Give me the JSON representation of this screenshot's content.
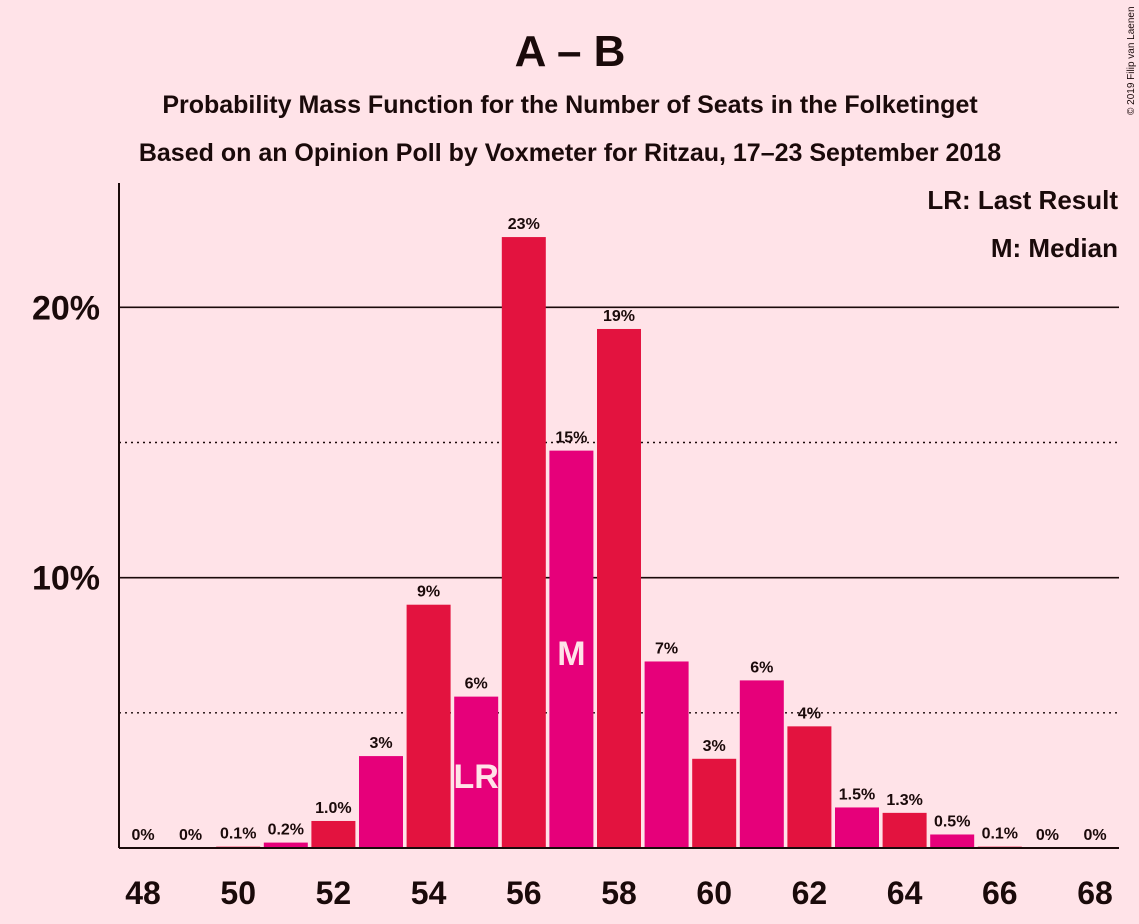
{
  "header": {
    "title": "A – B",
    "subtitle1": "Probability Mass Function for the Number of Seats in the Folketinget",
    "subtitle2": "Based on an Opinion Poll by Voxmeter for Ritzau, 17–23 September 2018",
    "copyright": "© 2019 Filip van Laenen"
  },
  "legend": {
    "lr": "LR: Last Result",
    "m": "M: Median"
  },
  "colors": {
    "background": "#ffe3e8",
    "bar_even": "#e3133f",
    "bar_odd": "#e6007a",
    "text": "#1a0a0a"
  },
  "chart_data": {
    "type": "bar",
    "xlabel": "",
    "ylabel": "",
    "ylim": [
      0,
      24.6
    ],
    "y_ticks": [
      {
        "value": 10,
        "label": "10%"
      },
      {
        "value": 20,
        "label": "20%"
      }
    ],
    "y_dotted": [
      5,
      15
    ],
    "x_ticks": [
      48,
      50,
      52,
      54,
      56,
      58,
      60,
      62,
      64,
      66,
      68
    ],
    "bars": [
      {
        "seats": 48,
        "value": 0.0,
        "label": "0%"
      },
      {
        "seats": 49,
        "value": 0.0,
        "label": "0%"
      },
      {
        "seats": 50,
        "value": 0.05,
        "label": "0.1%"
      },
      {
        "seats": 51,
        "value": 0.2,
        "label": "0.2%"
      },
      {
        "seats": 52,
        "value": 1.0,
        "label": "1.0%"
      },
      {
        "seats": 53,
        "value": 3.4,
        "label": "3%"
      },
      {
        "seats": 54,
        "value": 9.0,
        "label": "9%"
      },
      {
        "seats": 55,
        "value": 5.6,
        "label": "6%",
        "marker": "LR"
      },
      {
        "seats": 56,
        "value": 22.6,
        "label": "23%"
      },
      {
        "seats": 57,
        "value": 14.7,
        "label": "15%",
        "marker": "M"
      },
      {
        "seats": 58,
        "value": 19.2,
        "label": "19%"
      },
      {
        "seats": 59,
        "value": 6.9,
        "label": "7%"
      },
      {
        "seats": 60,
        "value": 3.3,
        "label": "3%"
      },
      {
        "seats": 61,
        "value": 6.2,
        "label": "6%"
      },
      {
        "seats": 62,
        "value": 4.5,
        "label": "4%"
      },
      {
        "seats": 63,
        "value": 1.5,
        "label": "1.5%"
      },
      {
        "seats": 64,
        "value": 1.3,
        "label": "1.3%"
      },
      {
        "seats": 65,
        "value": 0.5,
        "label": "0.5%"
      },
      {
        "seats": 66,
        "value": 0.05,
        "label": "0.1%"
      },
      {
        "seats": 67,
        "value": 0.0,
        "label": "0%"
      },
      {
        "seats": 68,
        "value": 0.0,
        "label": "0%"
      }
    ],
    "grid": true,
    "legend_position": "top-right"
  }
}
